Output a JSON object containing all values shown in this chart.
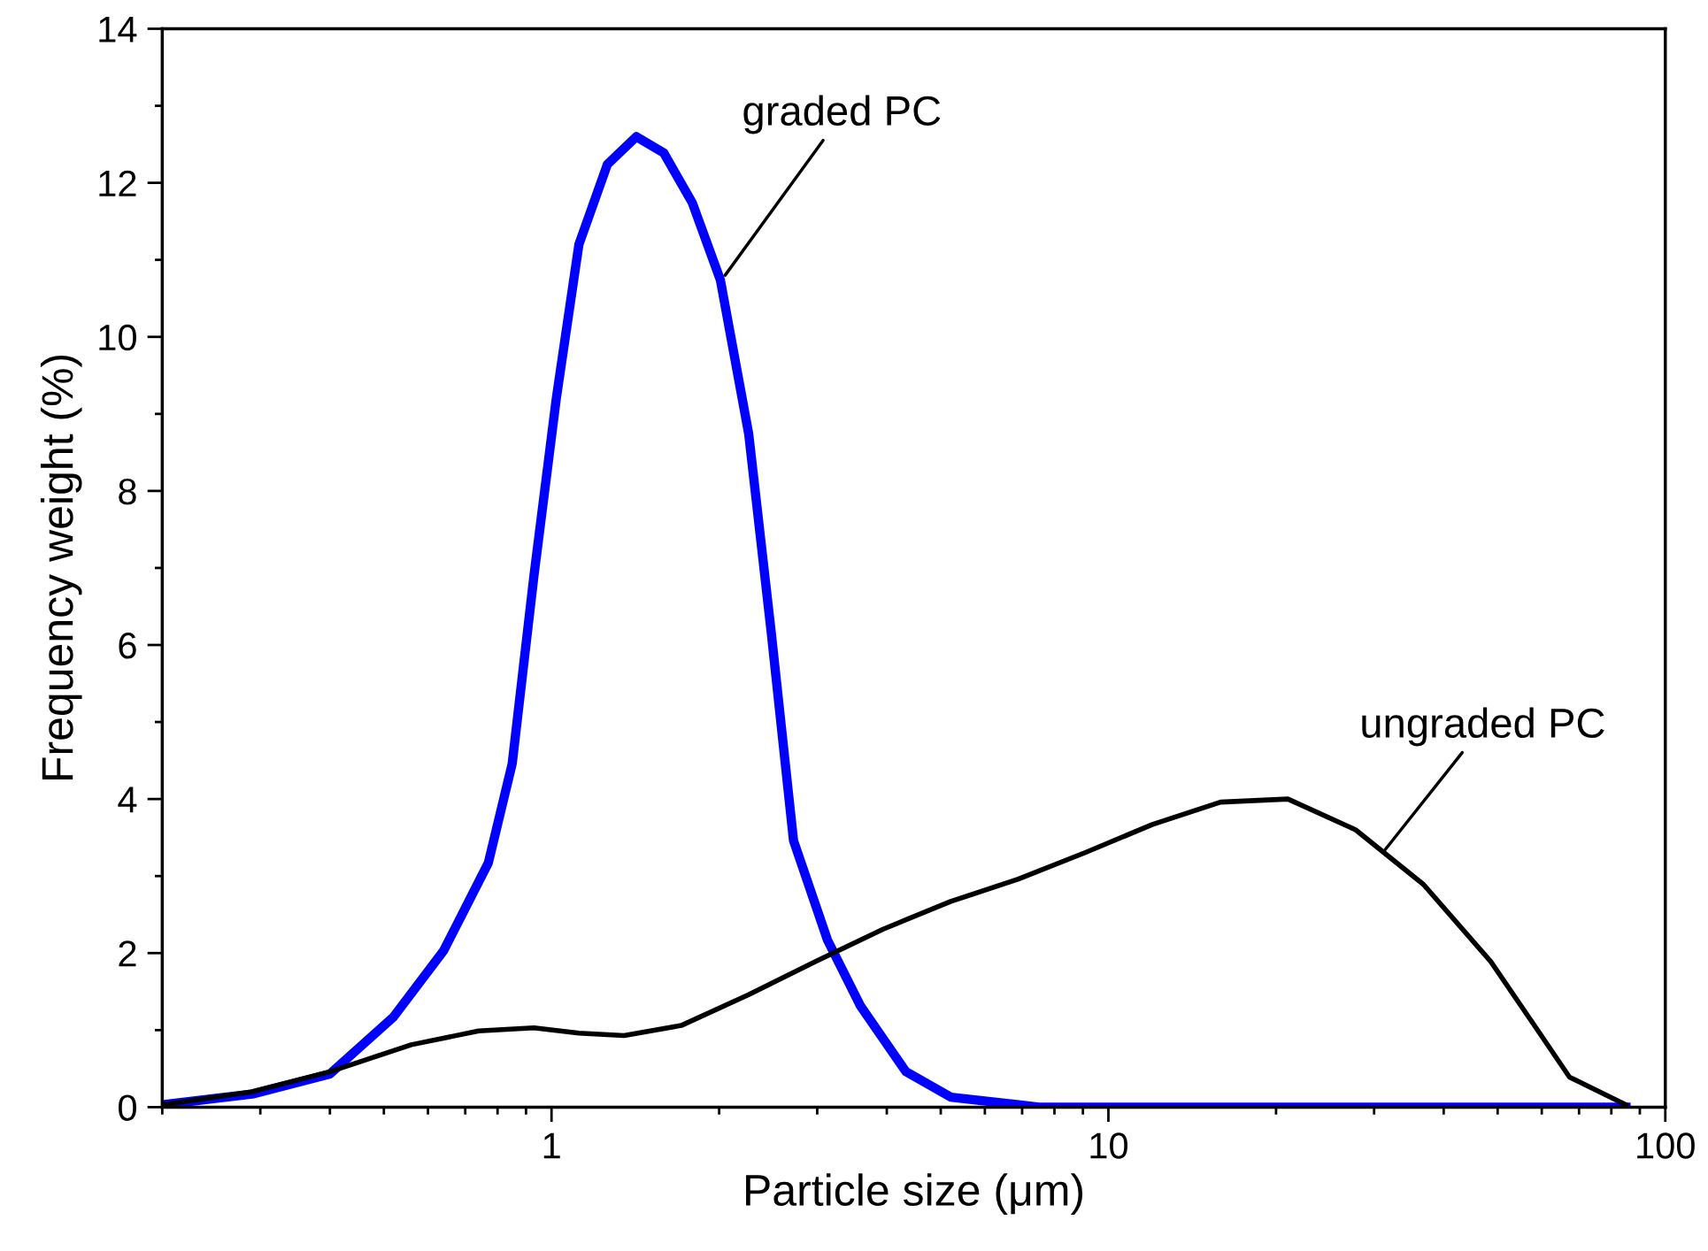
{
  "chart_data": {
    "type": "line",
    "xlabel": "Particle size (μm)",
    "ylabel": "Frequency weight (%)",
    "log": "x",
    "xlim": [
      0.2,
      100
    ],
    "xticks": [
      1,
      10,
      100
    ],
    "ylim": [
      0,
      14
    ],
    "yticks": [
      0,
      2,
      4,
      6,
      8,
      10,
      12,
      14
    ],
    "grid": false,
    "legend": false,
    "marker": "none",
    "line_style": "solid",
    "series": [
      {
        "color": "#0000ff",
        "x": [
          0.2,
          0.29,
          0.4,
          0.52,
          0.64,
          0.77,
          0.85,
          0.93,
          1.02,
          1.12,
          1.26,
          1.42,
          1.59,
          1.79,
          2.01,
          2.26,
          2.48,
          2.72,
          3.13,
          3.59,
          4.33,
          5.21,
          6.89,
          7.5,
          85
        ],
        "values": [
          0.03,
          0.17,
          0.43,
          1.17,
          2.03,
          3.17,
          4.46,
          6.9,
          9.2,
          11.2,
          12.24,
          12.6,
          12.39,
          11.74,
          10.74,
          8.74,
          6.17,
          3.46,
          2.17,
          1.31,
          0.46,
          0.13,
          0.03,
          0,
          0
        ]
      },
      {
        "color": "#000000",
        "x": [
          0.2,
          0.29,
          0.4,
          0.56,
          0.74,
          0.93,
          1.12,
          1.35,
          1.71,
          2.26,
          2.98,
          3.94,
          5.21,
          6.89,
          9.12,
          12.0,
          15.9,
          21.0,
          27.8,
          36.8,
          48.6,
          58.6,
          67.3,
          85
        ],
        "values": [
          0.03,
          0.2,
          0.46,
          0.81,
          0.99,
          1.03,
          0.96,
          0.93,
          1.06,
          1.46,
          1.89,
          2.31,
          2.67,
          2.96,
          3.31,
          3.67,
          3.96,
          4.0,
          3.6,
          2.89,
          1.89,
          1.03,
          0.39,
          0.03
        ]
      }
    ],
    "annotations": [
      {
        "text": "graded PC",
        "x": 2.05,
        "y": 10.8
      },
      {
        "text": "ungraded PC",
        "x": 31.3,
        "y": 3.33
      }
    ]
  }
}
